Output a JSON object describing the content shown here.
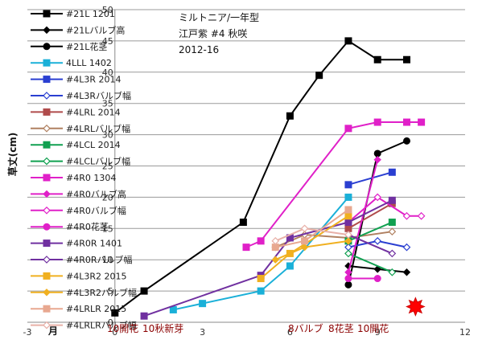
{
  "chart_data": {
    "type": "line",
    "title_lines": [
      "ミルトニア/一年型",
      "江戸紫 #4 秋咲",
      "2012-16"
    ],
    "ylabel": "草丈(cm)",
    "xlabel": "月",
    "xlim": [
      -3,
      12
    ],
    "ylim": [
      0,
      50
    ],
    "xticks": [
      "-3",
      "0",
      "3",
      "6",
      "9",
      "12"
    ],
    "yticks": [
      "0",
      "5",
      "10",
      "15",
      "20",
      "25",
      "30",
      "35",
      "40",
      "45",
      "50"
    ],
    "month_notes": [
      "10開花",
      "10秋新芽",
      "8バルブ",
      "8花茎",
      "10開花"
    ],
    "marker_color_star": "#ff0000",
    "series": [
      {
        "name": "#21L 1201",
        "color": "#000000",
        "marker": "square-filled",
        "points": [
          [
            0,
            1.5
          ],
          [
            1,
            5
          ],
          [
            4.4,
            16
          ],
          [
            6,
            33
          ],
          [
            7,
            39.5
          ],
          [
            8,
            45
          ],
          [
            9,
            42
          ],
          [
            10,
            42
          ]
        ]
      },
      {
        "name": "#21Lバルブ高",
        "color": "#000000",
        "marker": "diamond-filled",
        "points": [
          [
            8,
            9
          ],
          [
            9,
            8.5
          ],
          [
            10,
            8
          ]
        ]
      },
      {
        "name": "#21L花茎",
        "color": "#000000",
        "marker": "circle-filled",
        "points": [
          [
            8,
            6
          ],
          [
            9,
            27
          ],
          [
            10,
            29
          ]
        ]
      },
      {
        "name": "4LLL 1402",
        "color": "#1ab0d8",
        "marker": "square-filled",
        "points": [
          [
            2,
            2
          ],
          [
            3,
            3
          ],
          [
            5,
            5
          ],
          [
            6,
            9
          ],
          [
            8,
            20
          ]
        ]
      },
      {
        "name": "#4L3R 2014",
        "color": "#2a3fd1",
        "marker": "square-filled",
        "points": [
          [
            8,
            22
          ],
          [
            9.5,
            24
          ]
        ]
      },
      {
        "name": "#4L3Rバルブ幅",
        "color": "#2a3fd1",
        "marker": "diamond-open",
        "points": [
          [
            8,
            12
          ],
          [
            9,
            13
          ],
          [
            10,
            12
          ]
        ]
      },
      {
        "name": "#4LRL 2014",
        "color": "#b04b4b",
        "marker": "square-filled",
        "points": [
          [
            8,
            15
          ],
          [
            9.5,
            19
          ]
        ]
      },
      {
        "name": "#4LRLバルブ幅",
        "color": "#b08060",
        "marker": "diamond-open",
        "points": [
          [
            5.5,
            12
          ],
          [
            6.5,
            14
          ],
          [
            8,
            13.5
          ],
          [
            9.5,
            14.5
          ]
        ]
      },
      {
        "name": "#4LCL 2014",
        "color": "#10a050",
        "marker": "square-filled",
        "points": [
          [
            8,
            13
          ],
          [
            9.5,
            16
          ]
        ]
      },
      {
        "name": "#4LCLバルブ幅",
        "color": "#10a050",
        "marker": "diamond-open",
        "points": [
          [
            8,
            11
          ],
          [
            9.5,
            8
          ]
        ]
      },
      {
        "name": "#4R0 1304",
        "color": "#e020c8",
        "marker": "square-filled",
        "points": [
          [
            4.5,
            12
          ],
          [
            5,
            13
          ],
          [
            8,
            31
          ],
          [
            9,
            32
          ],
          [
            10,
            32
          ],
          [
            10.5,
            32
          ]
        ]
      },
      {
        "name": "#4R0バルブ高",
        "color": "#e020c8",
        "marker": "diamond-filled",
        "points": [
          [
            8,
            8
          ],
          [
            9,
            26
          ]
        ]
      },
      {
        "name": "#4R0バルブ幅",
        "color": "#e020c8",
        "marker": "diamond-open",
        "points": [
          [
            8,
            16
          ],
          [
            9,
            20
          ],
          [
            10,
            17
          ],
          [
            10.5,
            17
          ]
        ]
      },
      {
        "name": "#4R0花茎",
        "color": "#e020c8",
        "marker": "circle-filled",
        "points": [
          [
            8,
            7
          ],
          [
            9,
            7
          ]
        ]
      },
      {
        "name": "#4R0R 1401",
        "color": "#7030a0",
        "marker": "square-filled",
        "points": [
          [
            1,
            1
          ],
          [
            5,
            7.5
          ],
          [
            6,
            13.5
          ],
          [
            8,
            16
          ],
          [
            9.5,
            19.5
          ]
        ]
      },
      {
        "name": "#4R0Rバルブ幅",
        "color": "#7030a0",
        "marker": "diamond-open",
        "points": [
          [
            8,
            14
          ],
          [
            9.5,
            11
          ]
        ]
      },
      {
        "name": "#4L3R2 2015",
        "color": "#f0b020",
        "marker": "square-filled",
        "points": [
          [
            5,
            7
          ],
          [
            6,
            11
          ],
          [
            8,
            17
          ]
        ]
      },
      {
        "name": "#4L3R2バルブ幅",
        "color": "#f0b020",
        "marker": "diamond-filled",
        "points": [
          [
            5.5,
            10
          ],
          [
            6.5,
            12
          ],
          [
            8,
            13
          ]
        ]
      },
      {
        "name": "#4LRLR 2015",
        "color": "#e8a890",
        "marker": "square-filled",
        "points": [
          [
            5.5,
            12
          ],
          [
            6.5,
            13
          ],
          [
            8,
            18
          ]
        ]
      },
      {
        "name": "#4LRLRバルブ幅",
        "color": "#e8b0a8",
        "marker": "diamond-open",
        "points": [
          [
            5.5,
            13
          ],
          [
            6.5,
            15
          ],
          [
            8,
            14
          ]
        ]
      }
    ],
    "star_point": [
      10.3,
      2.5
    ]
  }
}
